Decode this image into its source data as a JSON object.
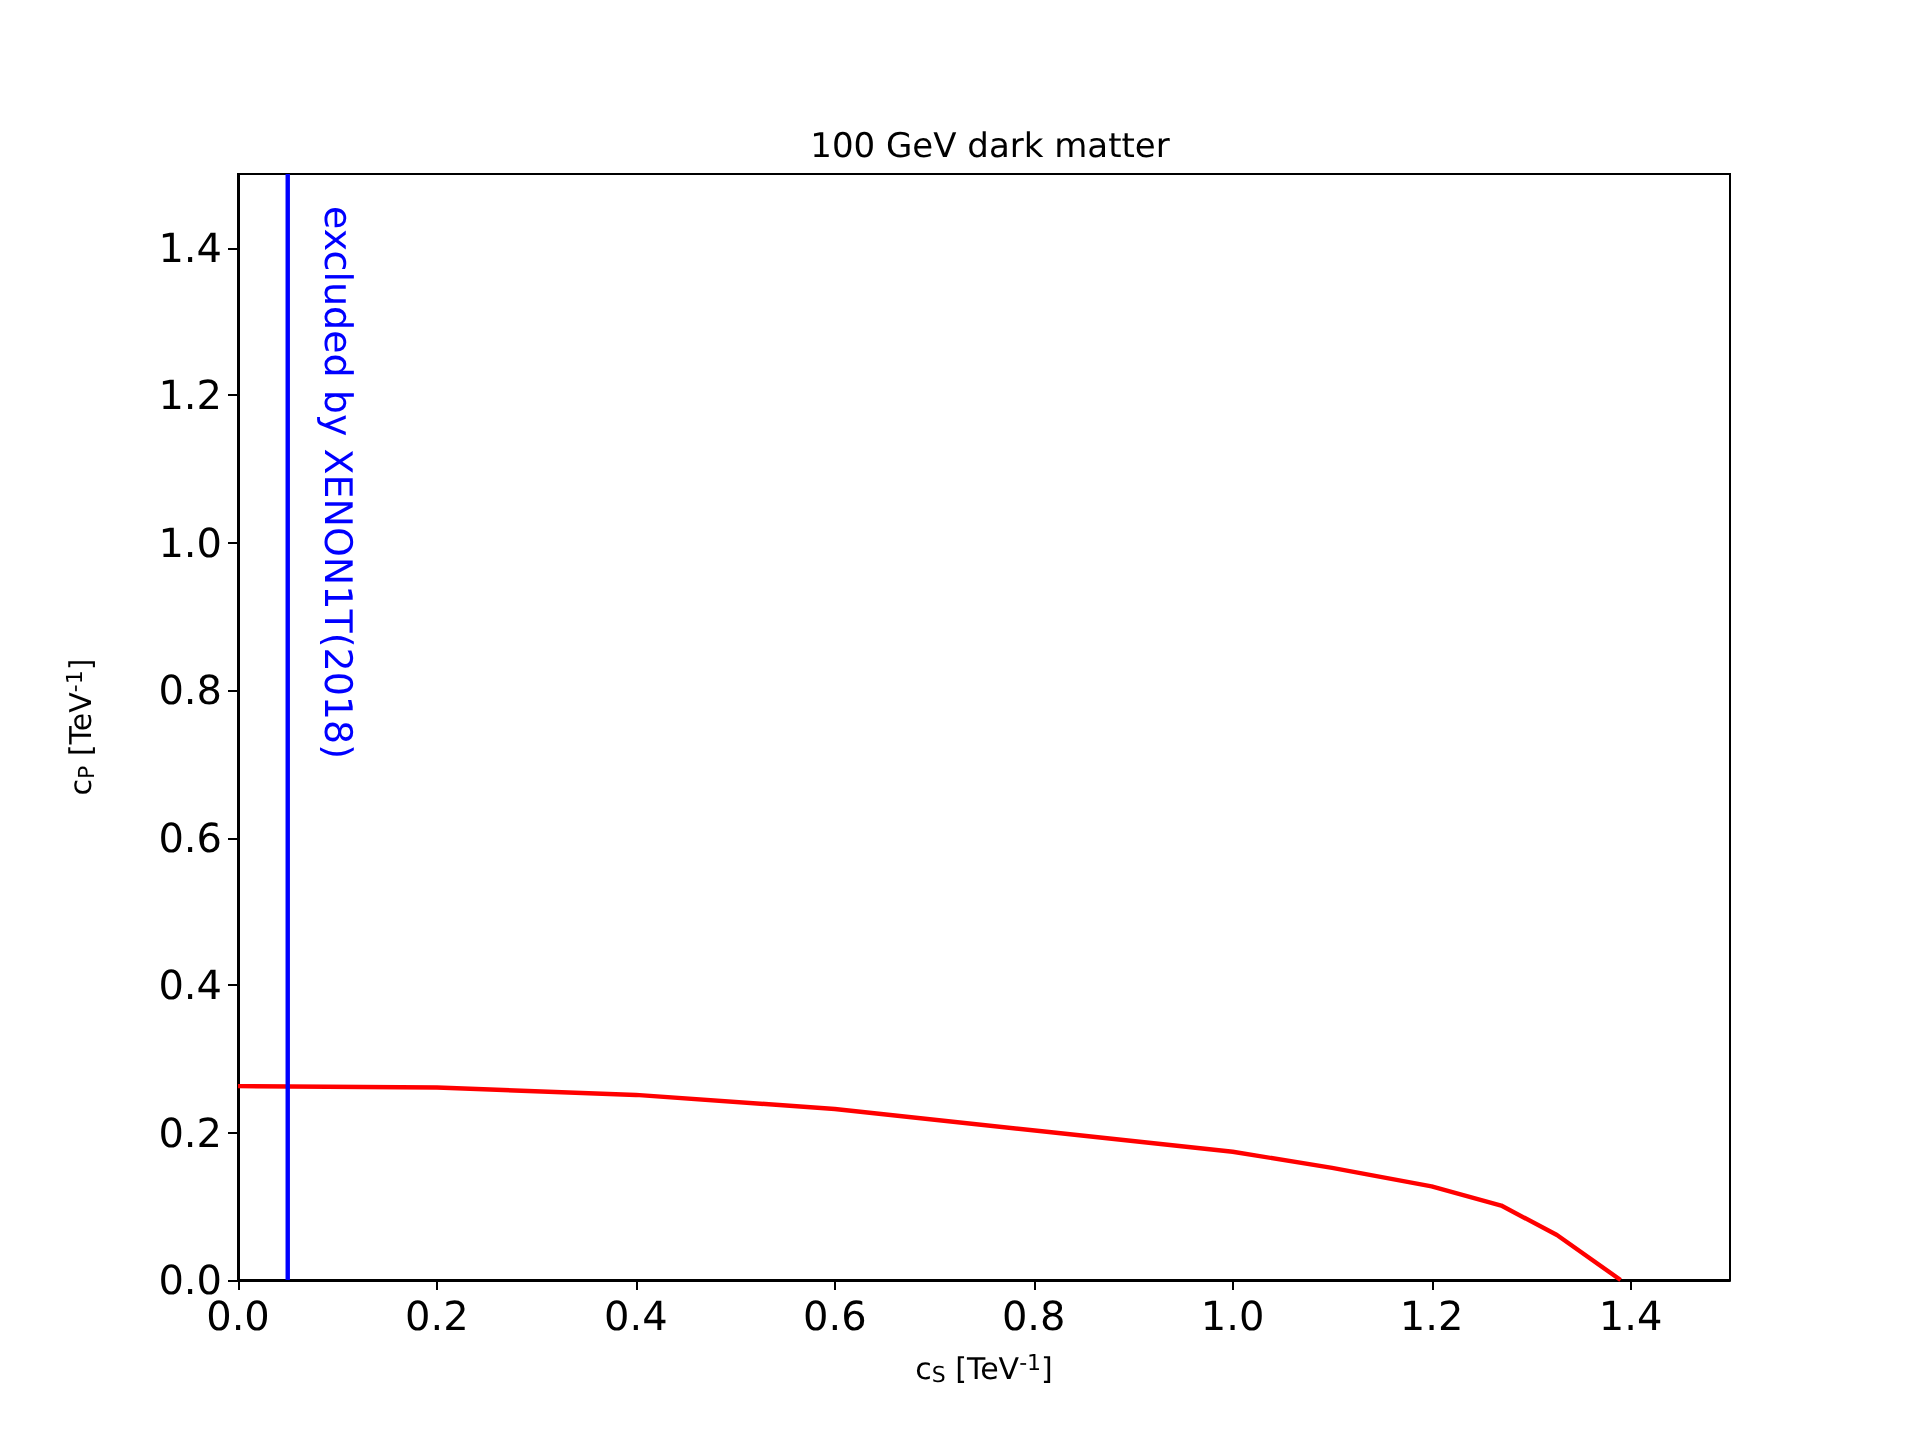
{
  "chart_data": {
    "type": "line",
    "title": "100 GeV dark matter",
    "xlabel": "c$_{S}$ [TeV$^{-1}$]",
    "ylabel": "c$_{P}$ [TeV$^{-1}$]",
    "x": [
      0,
      0.2,
      0.4,
      0.6,
      0.813,
      1.0,
      1.1,
      1.2,
      1.27,
      1.326,
      1.39
    ],
    "series": [
      {
        "color": "#ff0000",
        "values": [
          0.263,
          0.261,
          0.251,
          0.232,
          0.201,
          0.174,
          0.152,
          0.127,
          0.101,
          0.061,
          0
        ]
      }
    ],
    "xlim": [
      0,
      1.5
    ],
    "ylim": [
      0,
      1.5
    ],
    "xticks": [
      {
        "value": 0,
        "label": "0.0"
      },
      0.2,
      0.4,
      0.6,
      0.8,
      {
        "value": 1,
        "label": "1.0"
      },
      1.2,
      1.4
    ],
    "yticks": [
      {
        "value": 0,
        "label": "0.0"
      },
      0.2,
      0.4,
      0.6,
      0.8,
      {
        "value": 1,
        "label": "1.0"
      },
      1.2,
      1.4
    ],
    "ref_lines": [
      {
        "axis": "x",
        "value": 0.05,
        "label": "excluded by XENON1T(2018)",
        "color": "#0000ff"
      }
    ],
    "marker": "none",
    "line_style": "solid"
  }
}
